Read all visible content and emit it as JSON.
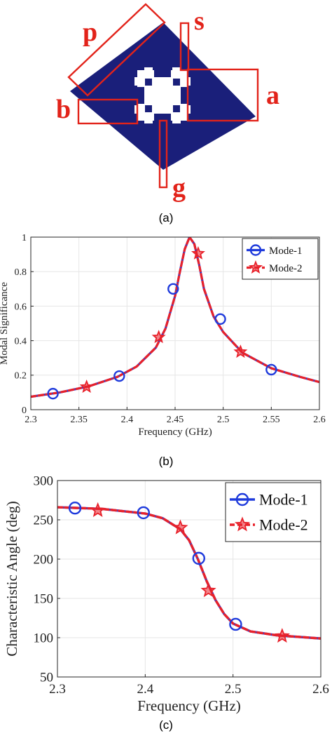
{
  "figure_a": {
    "labels": {
      "p": "p",
      "s": "s",
      "b": "b",
      "a": "a",
      "g": "g"
    },
    "caption": "(a)"
  },
  "figure_b": {
    "caption": "(b)"
  },
  "figure_c": {
    "caption": "(c)"
  },
  "colors": {
    "patch": "#1a1f7a",
    "annotation": "#e2231a",
    "mode1": "#1f3bdc",
    "mode2": "#e8212a",
    "grid": "#e6e6e6",
    "axis": "#262626"
  },
  "icons": [
    "circle-marker-icon",
    "star-marker-icon"
  ],
  "chart_data": [
    {
      "id": "modal-significance",
      "type": "line",
      "xlabel": "Frequency (GHz)",
      "ylabel": "Modal Significance",
      "xlim": [
        2.3,
        2.6
      ],
      "ylim": [
        0,
        1
      ],
      "xticks": [
        "2.3",
        "2.35",
        "2.4",
        "2.45",
        "2.5",
        "2.55",
        "2.6"
      ],
      "yticks": [
        "0",
        "0.2",
        "0.4",
        "0.6",
        "0.8",
        "1"
      ],
      "grid": true,
      "legend_position": "top-right",
      "series": [
        {
          "name": "Mode-1",
          "marker": "circle",
          "line": "solid",
          "x": [
            2.3,
            2.33,
            2.36,
            2.39,
            2.41,
            2.43,
            2.44,
            2.45,
            2.455,
            2.46,
            2.465,
            2.47,
            2.475,
            2.48,
            2.49,
            2.5,
            2.52,
            2.55,
            2.58,
            2.6
          ],
          "y": [
            0.075,
            0.1,
            0.135,
            0.19,
            0.25,
            0.36,
            0.47,
            0.66,
            0.8,
            0.93,
            1.0,
            0.96,
            0.84,
            0.7,
            0.54,
            0.45,
            0.33,
            0.24,
            0.19,
            0.16
          ],
          "markers": {
            "x": [
              2.323,
              2.392,
              2.448,
              2.497,
              2.55
            ],
            "y": [
              0.093,
              0.195,
              0.7,
              0.525,
              0.232
            ]
          }
        },
        {
          "name": "Mode-2",
          "marker": "star",
          "line": "dashed",
          "x": [
            2.3,
            2.33,
            2.36,
            2.39,
            2.41,
            2.43,
            2.44,
            2.45,
            2.455,
            2.46,
            2.465,
            2.47,
            2.475,
            2.48,
            2.49,
            2.5,
            2.52,
            2.55,
            2.58,
            2.6
          ],
          "y": [
            0.075,
            0.1,
            0.135,
            0.19,
            0.25,
            0.36,
            0.47,
            0.66,
            0.8,
            0.93,
            1.0,
            0.96,
            0.84,
            0.7,
            0.54,
            0.45,
            0.33,
            0.24,
            0.19,
            0.16
          ],
          "markers": {
            "x": [
              2.358,
              2.433,
              2.474,
              2.518
            ],
            "y": [
              0.132,
              0.42,
              0.905,
              0.335
            ]
          }
        }
      ]
    },
    {
      "id": "characteristic-angle",
      "type": "line",
      "xlabel": "Frequency (GHz)",
      "ylabel": "Characteristic Angle (deg)",
      "xlim": [
        2.3,
        2.6
      ],
      "ylim": [
        50,
        300
      ],
      "xticks": [
        "2.3",
        "2.4",
        "2.5",
        "2.6"
      ],
      "yticks": [
        "50",
        "100",
        "150",
        "200",
        "250",
        "300"
      ],
      "grid": true,
      "legend_position": "top-right",
      "series": [
        {
          "name": "Mode-1",
          "marker": "circle",
          "line": "solid",
          "x": [
            2.3,
            2.35,
            2.4,
            2.42,
            2.44,
            2.45,
            2.46,
            2.47,
            2.48,
            2.49,
            2.5,
            2.52,
            2.55,
            2.6
          ],
          "y": [
            266,
            264,
            258,
            252,
            238,
            224,
            200,
            172,
            148,
            130,
            118,
            108,
            103,
            99
          ],
          "markers": {
            "x": [
              2.32,
              2.398,
              2.461,
              2.503
            ],
            "y": [
              265,
              259,
              201,
              117
            ]
          }
        },
        {
          "name": "Mode-2",
          "marker": "star",
          "line": "dashed",
          "x": [
            2.3,
            2.35,
            2.4,
            2.42,
            2.44,
            2.45,
            2.46,
            2.47,
            2.48,
            2.49,
            2.5,
            2.52,
            2.55,
            2.6
          ],
          "y": [
            266,
            264,
            258,
            252,
            238,
            224,
            200,
            172,
            148,
            130,
            118,
            108,
            103,
            99
          ],
          "markers": {
            "x": [
              2.346,
              2.44,
              2.472,
              2.556
            ],
            "y": [
              262,
              240,
              160,
              102
            ]
          }
        }
      ]
    }
  ]
}
